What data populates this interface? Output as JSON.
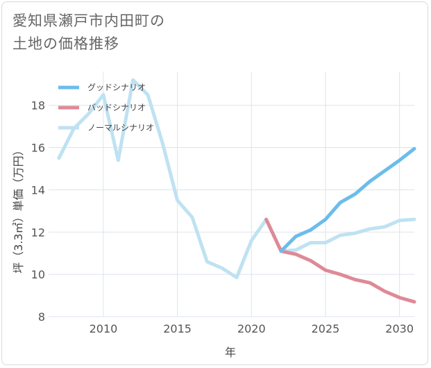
{
  "title_lines": [
    "愛知県瀬戸市内田町の",
    "土地の価格推移"
  ],
  "colors": {
    "good": "#6cbcec",
    "bad": "#de8a96",
    "normal": "#bfe2f2",
    "grid": "#dde3ea",
    "background": "#ffffff"
  },
  "chart_data": {
    "type": "line",
    "title": "愛知県瀬戸市内田町の土地の価格推移",
    "xlabel": "年",
    "ylabel": "坪（3.3㎡）単価（万円）",
    "xlim": [
      2006.3,
      2031
    ],
    "ylim": [
      8,
      19.6
    ],
    "x_ticks": [
      2010,
      2015,
      2020,
      2025,
      2030
    ],
    "y_ticks": [
      8,
      10,
      12,
      14,
      16,
      18
    ],
    "grid": true,
    "legend_position": "top-left",
    "series": [
      {
        "name": "グッドシナリオ",
        "color": "#6cbcec",
        "x": [
          2022,
          2023,
          2024,
          2025,
          2026,
          2027,
          2028,
          2029,
          2030,
          2031
        ],
        "y": [
          11.1,
          11.8,
          12.1,
          12.6,
          13.4,
          13.8,
          14.4,
          14.9,
          15.4,
          15.95
        ]
      },
      {
        "name": "バッドシナリオ",
        "color": "#de8a96",
        "x": [
          2021,
          2022,
          2023,
          2024,
          2025,
          2026,
          2027,
          2028,
          2029,
          2030,
          2031
        ],
        "y": [
          12.6,
          11.1,
          10.95,
          10.65,
          10.2,
          10.0,
          9.75,
          9.6,
          9.2,
          8.9,
          8.7
        ]
      },
      {
        "name": "ノーマルシナリオ",
        "color": "#bfe2f2",
        "x": [
          2007,
          2008,
          2009,
          2010,
          2011,
          2012,
          2013,
          2014,
          2015,
          2016,
          2017,
          2018,
          2019,
          2020,
          2021,
          2022,
          2023,
          2024,
          2025,
          2026,
          2027,
          2028,
          2029,
          2030,
          2031
        ],
        "y": [
          15.5,
          16.9,
          17.6,
          18.5,
          15.4,
          19.2,
          18.5,
          16.2,
          13.5,
          12.7,
          10.6,
          10.3,
          9.85,
          11.6,
          12.6,
          11.1,
          11.15,
          11.5,
          11.5,
          11.85,
          11.95,
          12.15,
          12.25,
          12.55,
          12.6
        ]
      }
    ]
  }
}
